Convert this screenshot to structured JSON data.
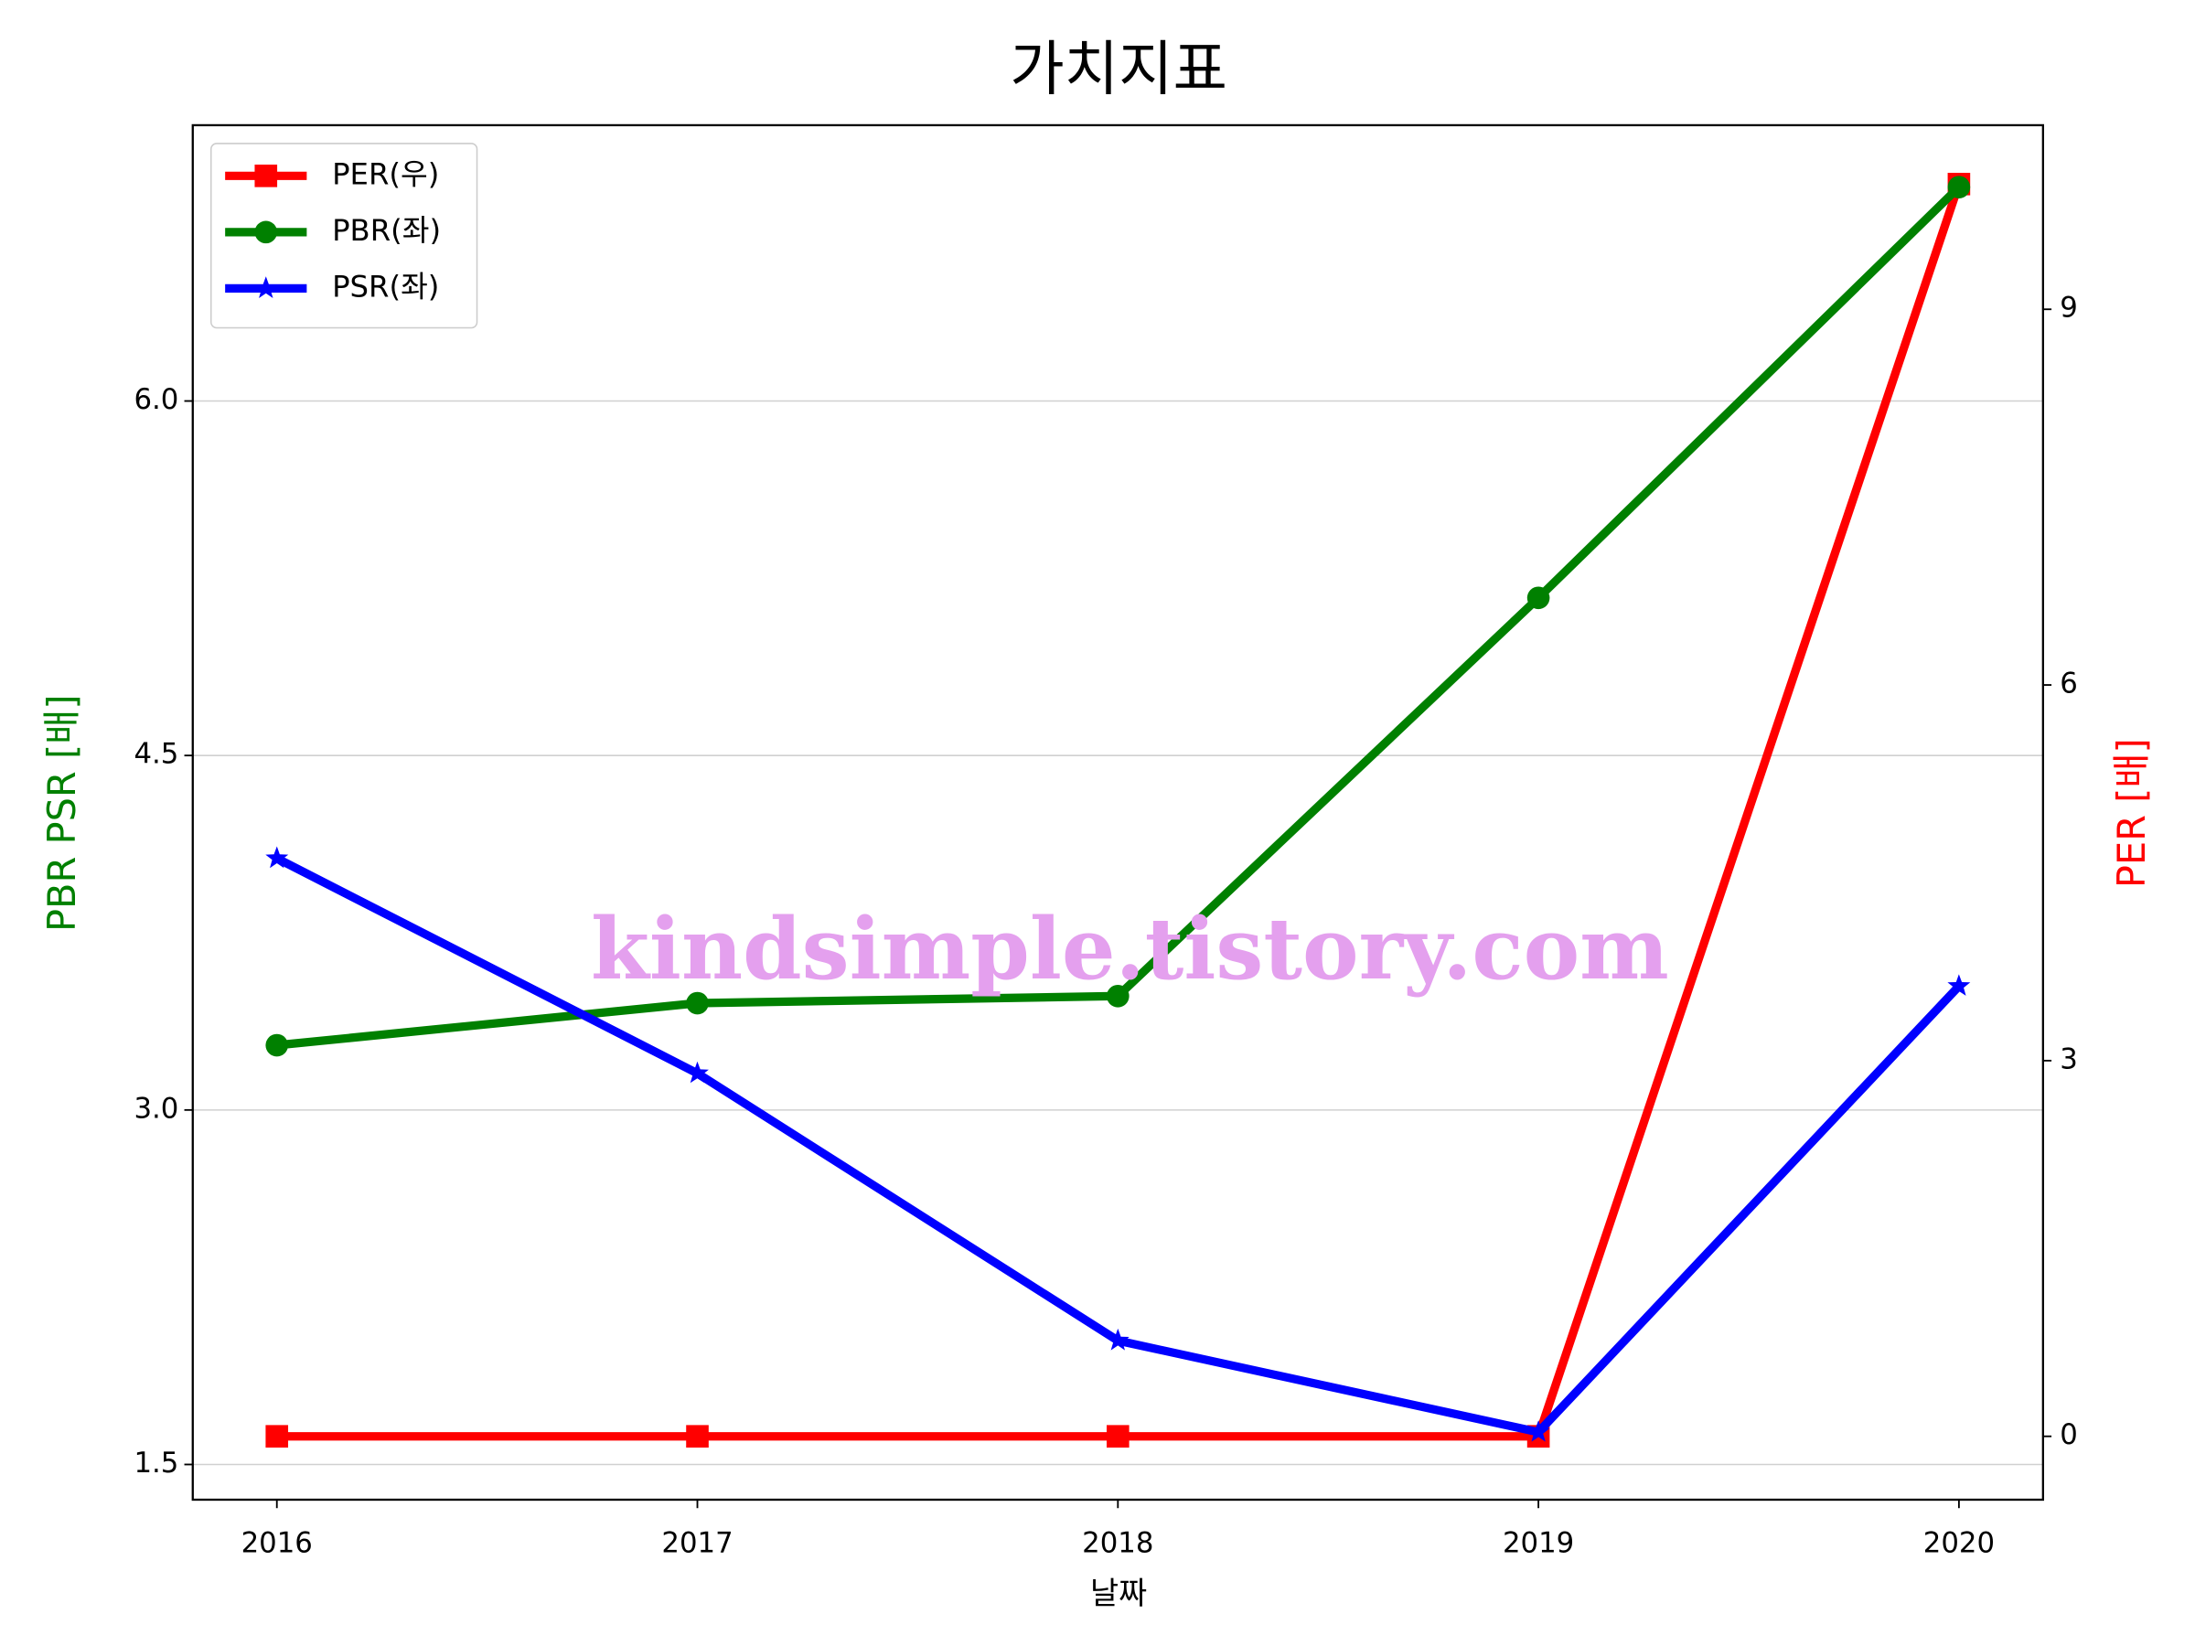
{
  "chart_data": {
    "type": "line",
    "title": "가치지표",
    "x_label": "날짜",
    "y_label": "PBR PSR [배]",
    "y2_label": "PER [배]",
    "x": [
      2016,
      2017,
      2018,
      2019,
      2020
    ],
    "xlim": [
      2015.8,
      2020.2
    ],
    "xticks": [
      2016,
      2017,
      2018,
      2019,
      2020
    ],
    "ylim": [
      1.351,
      7.167
    ],
    "yticks": [
      1.5,
      {
        "value": 3,
        "label": "3.0"
      },
      4.5,
      {
        "value": 6,
        "label": "6.0"
      }
    ],
    "y2lim": [
      -0.506,
      10.47
    ],
    "y2ticks": [
      0,
      3,
      6,
      9
    ],
    "grid": true,
    "legend": "upper left",
    "series": [
      {
        "name": "PER(우)",
        "color": "#ff0000",
        "marker": "square",
        "axis": "y2",
        "values": [
          0,
          0,
          0,
          0,
          10
        ]
      },
      {
        "name": "PBR(좌)",
        "color": "#008000",
        "marker": "circle",
        "values": [
          3.274,
          3.452,
          3.482,
          5.167,
          6.905
        ]
      },
      {
        "name": "PSR(좌)",
        "color": "#0000ff",
        "marker": "star",
        "values": [
          4.065,
          3.155,
          2.024,
          1.637,
          3.524
        ]
      }
    ],
    "watermark": "kindsimple.tistory.com"
  }
}
